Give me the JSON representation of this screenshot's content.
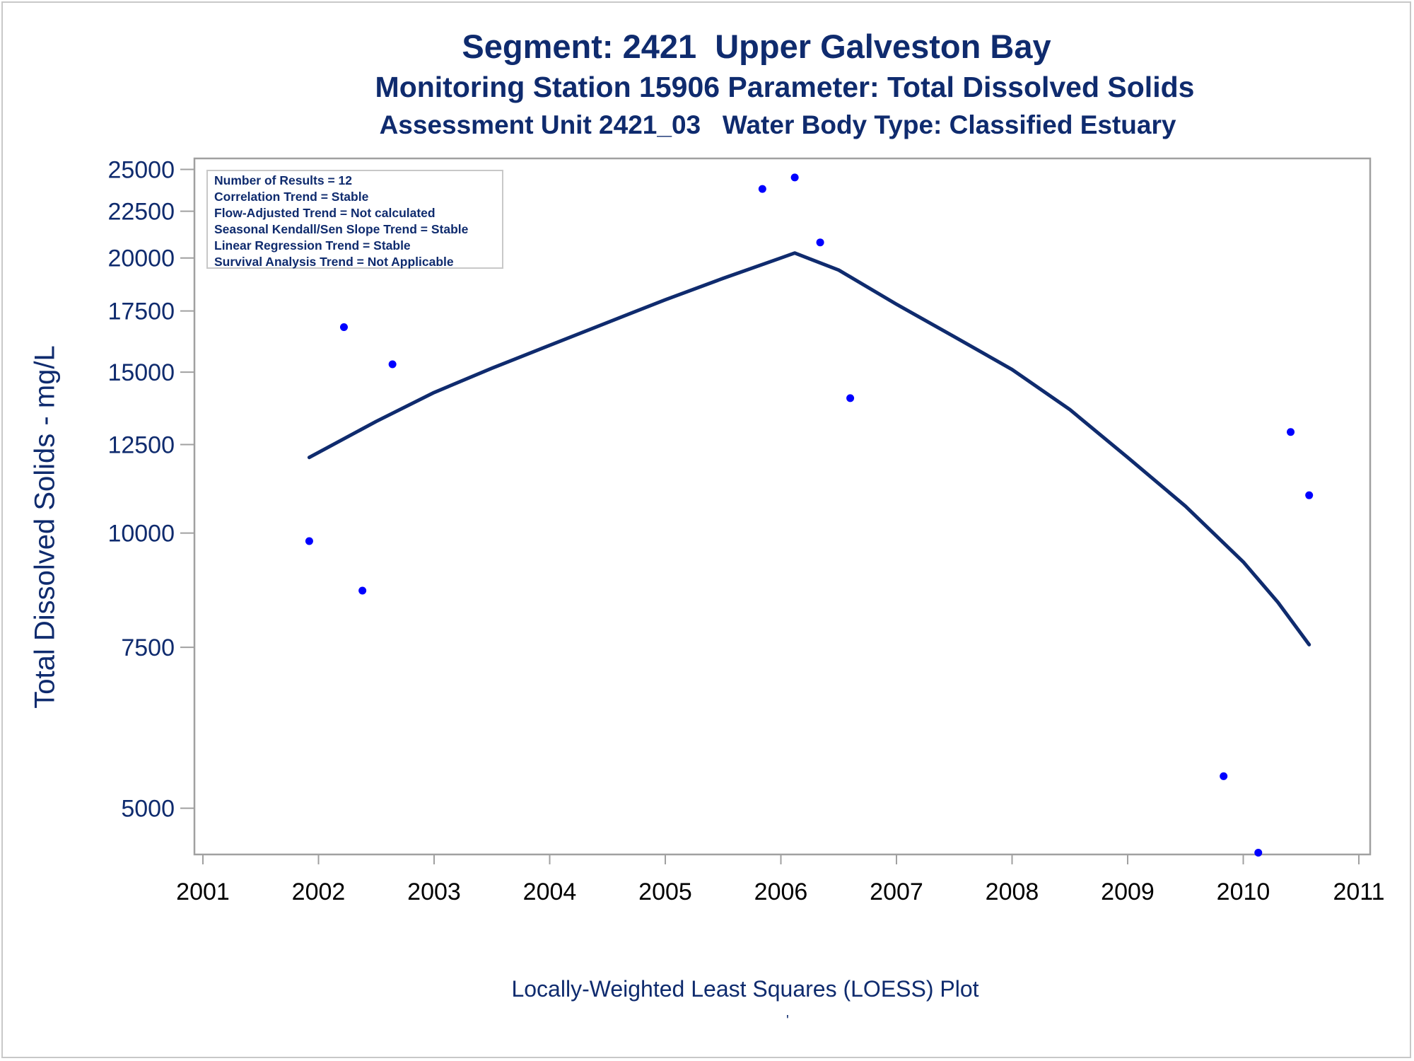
{
  "titles": {
    "line1": "Segment: 2421  Upper Galveston Bay",
    "line2": "Monitoring Station 15906 Parameter: Total Dissolved Solids",
    "line3": "Assessment Unit 2421_03   Water Body Type: Classified Estuary"
  },
  "footer": "Locally-Weighted Least Squares (LOESS) Plot",
  "footer_mark": "'",
  "stats": [
    "Number of Results = 12",
    "Correlation Trend = Stable",
    "Flow-Adjusted Trend = Not calculated",
    "Seasonal Kendall/Sen Slope Trend = Stable",
    "Linear Regression Trend = Stable",
    "Survival Analysis Trend = Not Applicable"
  ],
  "colors": {
    "text": "#0f2b6e",
    "points": "#0000ff",
    "curve": "#0f2b6e",
    "axis": "#a0a0a0"
  },
  "chart_data": {
    "type": "scatter",
    "title": "Segment: 2421  Upper Galveston Bay",
    "ylabel": "Total Dissolved Solids - mg/L",
    "xlabel": "",
    "y_scale": "log",
    "xlim": [
      2001,
      2011
    ],
    "ylim": [
      4450,
      25700
    ],
    "x_ticks": [
      2001,
      2002,
      2003,
      2004,
      2005,
      2006,
      2007,
      2008,
      2009,
      2010,
      2011
    ],
    "y_ticks": [
      5000,
      7500,
      10000,
      12500,
      15000,
      17500,
      20000,
      22500,
      25000
    ],
    "grid": false,
    "legend": "top-left",
    "series": [
      {
        "kind": "points",
        "x": [
          2001.92,
          2002.22,
          2002.38,
          2002.64,
          2005.84,
          2006.12,
          2006.34,
          2006.6,
          2009.83,
          2010.13,
          2010.41,
          2010.57
        ],
        "y": [
          9800,
          16800,
          8650,
          15300,
          23800,
          24500,
          20800,
          14050,
          5420,
          4470,
          12900,
          11000
        ]
      },
      {
        "kind": "loess-curve",
        "x": [
          2001.92,
          2002.5,
          2003.0,
          2003.5,
          2004.0,
          2004.5,
          2005.0,
          2005.5,
          2006.0,
          2006.12,
          2006.5,
          2007.0,
          2007.5,
          2008.0,
          2008.5,
          2009.0,
          2009.5,
          2010.0,
          2010.3,
          2010.57
        ],
        "y": [
          12100,
          13250,
          14250,
          15150,
          16050,
          17000,
          18000,
          19000,
          20000,
          20250,
          19400,
          17800,
          16400,
          15100,
          13650,
          12100,
          10700,
          9300,
          8400,
          7550
        ]
      }
    ]
  }
}
